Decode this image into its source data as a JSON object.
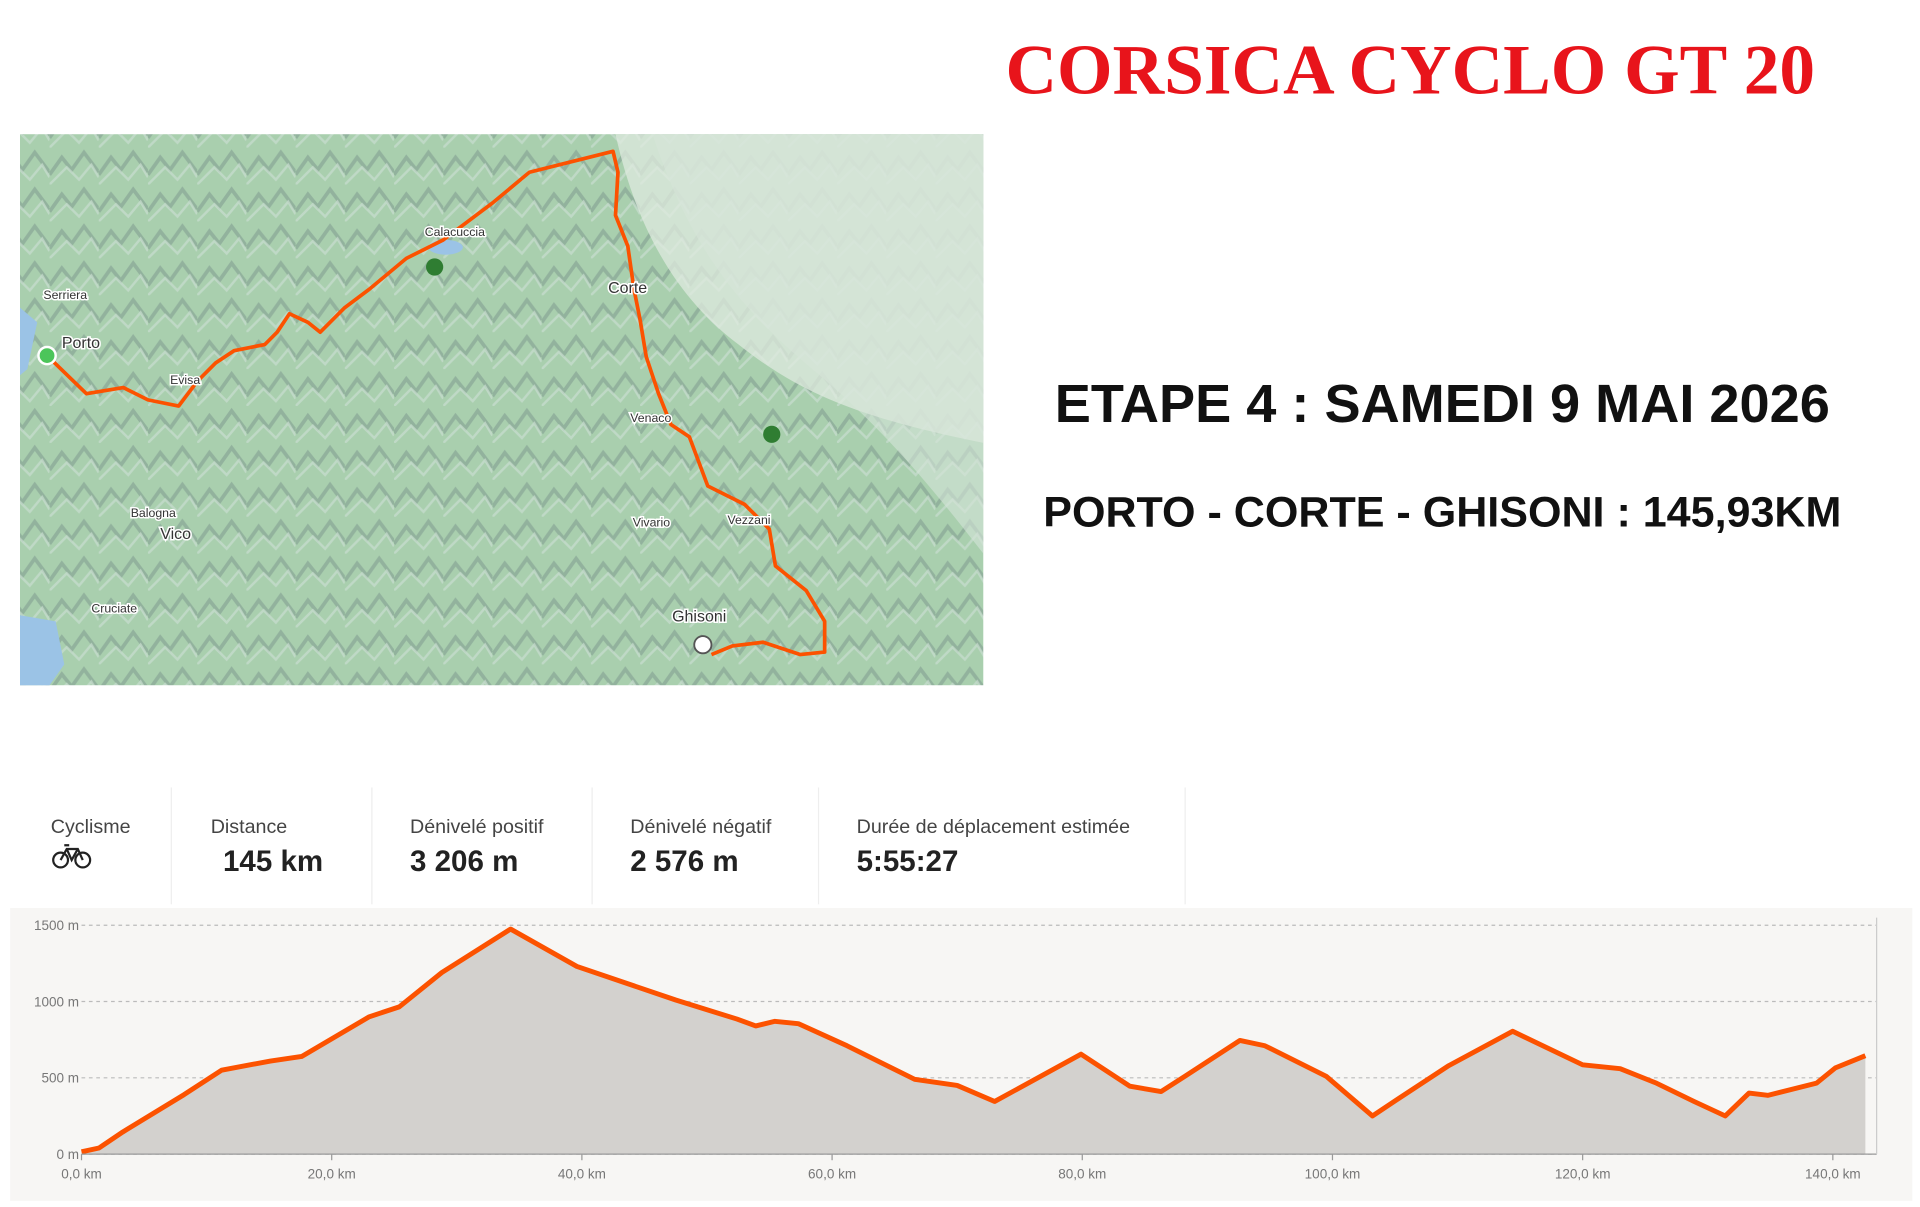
{
  "header": {
    "title": "CORSICA CYCLO GT 20"
  },
  "stage": {
    "heading": "ETAPE 4 : SAMEDI 9 MAI 2026",
    "route": "PORTO - CORTE - GHISONI : 145,93KM"
  },
  "map": {
    "labels": [
      "Calacuccia",
      "Serriera",
      "Porto",
      "Evisa",
      "Corte",
      "Venaco",
      "Vivario",
      "Vezzani",
      "Balogna",
      "Vico",
      "Cruciate",
      "Ghisoni"
    ]
  },
  "stats": [
    {
      "label": "Cyclisme"
    },
    {
      "label": "Distance",
      "value": "145 km"
    },
    {
      "label": "Dénivelé positif",
      "value": "3 206 m"
    },
    {
      "label": "Dénivelé négatif",
      "value": "2 576 m"
    },
    {
      "label": "Durée de déplacement estimée",
      "value": "5:55:27"
    }
  ],
  "chart_data": {
    "type": "area",
    "color": "#fc5200",
    "fill": "#d3d1ce",
    "grid": true,
    "x": [
      0,
      1.4,
      3.3,
      8.2,
      11.2,
      15.1,
      17.6,
      23,
      25.4,
      28.8,
      34.3,
      39.6,
      47.5,
      52.4,
      53.9,
      55.4,
      57.3,
      61.2,
      66.6,
      70,
      73,
      79.9,
      83.8,
      86.3,
      88.2,
      92.6,
      94.6,
      99.5,
      103.2,
      105.3,
      109.3,
      114.4,
      120,
      123,
      125.9,
      128.9,
      131.4,
      133.3,
      134.8,
      138.7,
      140.2,
      142.6
    ],
    "values": [
      15,
      40,
      145,
      390,
      550,
      610,
      640,
      900,
      965,
      1190,
      1475,
      1230,
      1010,
      885,
      840,
      870,
      855,
      710,
      490,
      450,
      345,
      655,
      445,
      410,
      510,
      745,
      710,
      510,
      250,
      365,
      580,
      805,
      585,
      560,
      465,
      345,
      250,
      400,
      385,
      465,
      565,
      645
    ],
    "xlim": [
      0,
      143.5
    ],
    "ylim": [
      0,
      1550
    ],
    "xticks": [
      {
        "value": 0,
        "label": "0,0 km"
      },
      {
        "value": 20,
        "label": "20,0 km"
      },
      {
        "value": 40,
        "label": "40,0 km"
      },
      {
        "value": 60,
        "label": "60,0 km"
      },
      {
        "value": 80,
        "label": "80,0 km"
      },
      {
        "value": 100,
        "label": "100,0 km"
      },
      {
        "value": 120,
        "label": "120,0 km"
      },
      {
        "value": 140,
        "label": "140,0 km"
      }
    ],
    "yticks": [
      {
        "value": 0,
        "label": "0 m"
      },
      {
        "value": 500,
        "label": "500 m"
      },
      {
        "value": 1000,
        "label": "1000 m"
      },
      {
        "value": 1500,
        "label": "1500 m"
      }
    ]
  }
}
